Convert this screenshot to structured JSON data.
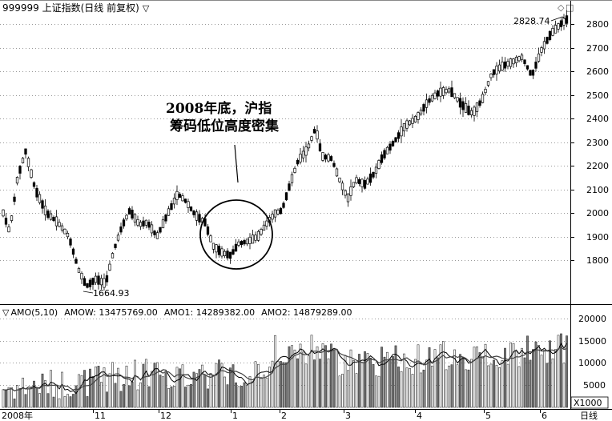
{
  "header": {
    "title": "999999 上证指数(日线 前复权)",
    "dropdown_glyph": "▽",
    "controls": [
      "◇",
      "□"
    ]
  },
  "annotation": {
    "line1": "2008年底，沪指",
    "line2": "筹码低位高度密集"
  },
  "price_chart": {
    "high_label": "2828.74",
    "low_label": "1664.93",
    "y_ticks": [
      "2800",
      "2700",
      "2600",
      "2500",
      "2400",
      "2300",
      "2200",
      "2100",
      "2000",
      "1900",
      "1800"
    ]
  },
  "indicator": {
    "toggle_glyph": "▽",
    "name": "AMO(5,10)",
    "amow": "AMOW: 13475769.00",
    "amo1": "AMO1: 14289382.00",
    "amo2": "AMO2: 14879289.00",
    "y_ticks": [
      "20000",
      "15000",
      "10000",
      "5000"
    ],
    "unit": "X1000"
  },
  "x_axis": {
    "labels": [
      "2008年",
      "11",
      "12",
      "1",
      "2",
      "3",
      "4",
      "5",
      "6"
    ],
    "period_label": "日线"
  },
  "chart_data": {
    "type": "candlestick",
    "period": "daily",
    "price_range": [
      1664.93,
      2828.74
    ],
    "volume_range": [
      0,
      20000
    ],
    "volume_unit": "X1000",
    "amo_values": {
      "AMOW": 13475769.0,
      "AMO1": 14289382.0,
      "AMO2": 14879289.0
    }
  }
}
